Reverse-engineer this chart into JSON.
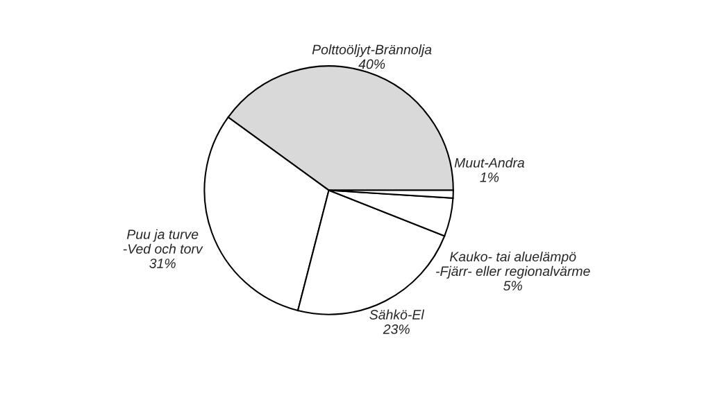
{
  "chart_data": {
    "type": "pie",
    "categories": [
      "Polttoöljyt-Brännolja",
      "Puu ja turve\n-Ved och torv",
      "Sähkö-El",
      "Kauko- tai aluelämpö\n-Fjärr- eller regionalvärme",
      "Muut-Andra"
    ],
    "values": [
      40,
      31,
      23,
      5,
      1
    ],
    "value_labels": [
      "40%",
      "31%",
      "23%",
      "5%",
      "1%"
    ],
    "colors": [
      "#d9d9d9",
      "#ffffff",
      "#ffffff",
      "#ffffff",
      "#ffffff"
    ],
    "legend": false
  }
}
